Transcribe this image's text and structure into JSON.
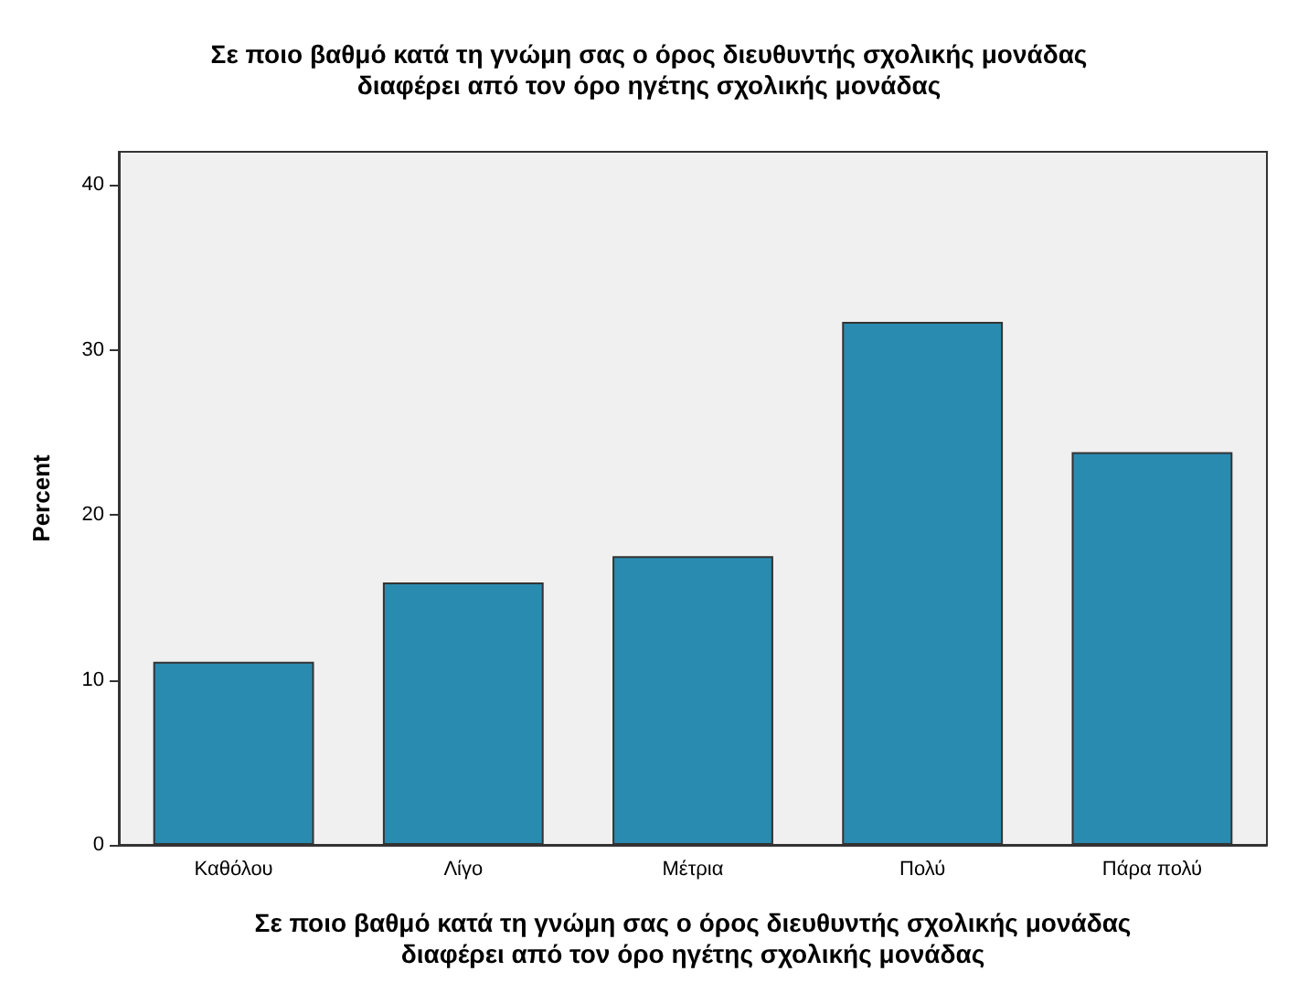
{
  "chart_data": {
    "type": "bar",
    "title": "Σε ποιο βαθμό κατά τη γνώμη σας ο όρος διευθυντής σχολικής μονάδας\nδιαφέρει από τον όρο ηγέτης σχολικής μονάδας",
    "xlabel": "Σε ποιο βαθμό κατά τη γνώμη σας ο όρος διευθυντής σχολικής μονάδας\nδιαφέρει από τον όρο ηγέτης σχολικής μονάδας",
    "ylabel": "Percent",
    "categories": [
      "Καθόλου",
      "Λίγο",
      "Μέτρια",
      "Πολύ",
      "Πάρα πολύ"
    ],
    "values": [
      11.1,
      15.9,
      17.5,
      31.7,
      23.8
    ],
    "color": "#2a8bb0",
    "ylim": [
      0,
      42
    ],
    "yticks": [
      0,
      10,
      20,
      30,
      40
    ],
    "grid": false
  }
}
